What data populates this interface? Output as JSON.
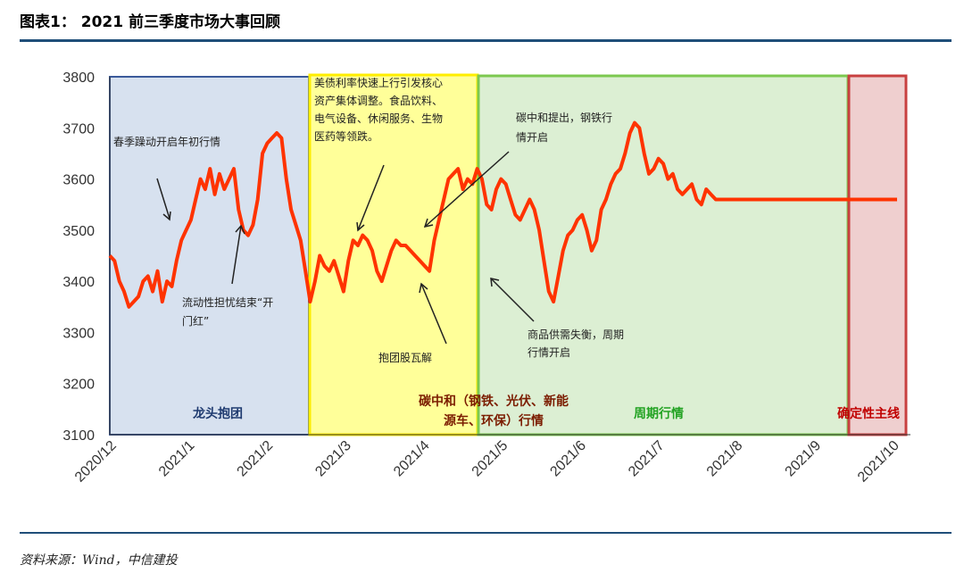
{
  "header": {
    "title": "图表1：  2021 前三季度市场大事回顾"
  },
  "footer": {
    "source": "资料来源：Wind，中信建投"
  },
  "chart_data": {
    "type": "line",
    "ylim": [
      3100,
      3800
    ],
    "yticks": [
      "3800",
      "3700",
      "3600",
      "3500",
      "3400",
      "3300",
      "3200",
      "3100"
    ],
    "xticks": [
      "2020/12",
      "2021/1",
      "2021/2",
      "2021/3",
      "2021/4",
      "2021/5",
      "2021/6",
      "2021/7",
      "2021/8",
      "2021/9",
      "2021/10"
    ],
    "line_color": "#ff3300",
    "x": [
      0,
      2,
      4,
      6,
      8,
      10,
      12,
      14,
      16,
      18,
      20,
      22,
      24,
      26,
      28,
      30,
      32,
      34,
      36,
      38,
      40,
      42,
      44,
      46,
      48,
      50,
      52,
      54,
      56,
      58,
      60,
      62,
      64,
      66,
      68,
      70,
      72,
      74,
      76,
      78,
      80,
      82,
      84,
      86,
      88,
      90,
      92,
      94,
      96,
      98,
      100,
      102,
      104,
      106,
      108,
      110,
      112,
      114,
      116,
      118,
      120,
      122,
      124,
      126,
      128,
      130,
      132,
      134,
      136,
      138,
      140,
      142,
      144,
      146,
      148,
      150,
      152,
      154,
      156,
      158,
      160,
      162,
      164,
      166,
      168,
      170,
      172,
      174,
      176,
      178,
      180,
      182,
      184,
      186,
      188,
      190,
      192,
      194,
      196,
      198,
      200,
      202,
      204,
      206,
      208,
      210,
      212,
      214,
      216,
      218,
      220,
      222,
      224,
      226,
      228,
      230,
      232,
      234,
      236,
      238,
      240,
      242,
      244,
      246,
      248,
      250,
      252,
      254,
      256,
      258,
      260,
      262,
      264,
      266,
      268,
      270,
      272,
      274,
      276,
      278,
      280,
      282,
      284,
      286,
      288,
      290,
      292,
      294,
      296,
      298,
      300,
      302,
      304,
      306,
      308,
      310,
      312,
      314,
      316,
      318,
      320,
      322,
      324,
      326,
      328,
      330
    ],
    "values": [
      3450,
      3440,
      3400,
      3380,
      3350,
      3360,
      3370,
      3400,
      3410,
      3380,
      3420,
      3360,
      3400,
      3390,
      3440,
      3480,
      3500,
      3520,
      3560,
      3600,
      3580,
      3620,
      3570,
      3610,
      3580,
      3600,
      3620,
      3540,
      3500,
      3490,
      3510,
      3560,
      3650,
      3670,
      3680,
      3690,
      3680,
      3600,
      3540,
      3510,
      3480,
      3420,
      3360,
      3400,
      3450,
      3430,
      3420,
      3440,
      3410,
      3380,
      3440,
      3480,
      3470,
      3490,
      3480,
      3460,
      3420,
      3400,
      3430,
      3460,
      3480,
      3470,
      3470,
      3460,
      3450,
      3440,
      3430,
      3420,
      3480,
      3520,
      3560,
      3600,
      3610,
      3620,
      3580,
      3600,
      3590,
      3620,
      3600,
      3550,
      3540,
      3580,
      3600,
      3590,
      3560,
      3530,
      3520,
      3540,
      3560,
      3540,
      3500,
      3440,
      3380,
      3360,
      3410,
      3460,
      3490,
      3500,
      3520,
      3530,
      3500,
      3460,
      3480,
      3540,
      3560,
      3590,
      3610,
      3620,
      3650,
      3690,
      3710,
      3700,
      3650,
      3610,
      3620,
      3640,
      3630,
      3600,
      3610,
      3580,
      3570,
      3580,
      3590,
      3560,
      3550,
      3580,
      3570,
      3560,
      3560,
      3560,
      3560,
      3560,
      3560,
      3560,
      3560,
      3560,
      3560,
      3560,
      3560,
      3560,
      3560,
      3560,
      3560,
      3560,
      3560,
      3560,
      3560,
      3560,
      3560,
      3560,
      3560,
      3560,
      3560,
      3560,
      3560,
      3560,
      3560,
      3560,
      3560,
      3560,
      3560,
      3560,
      3560,
      3560,
      3560,
      3560
    ],
    "zones": [
      {
        "label": "龙头抱团",
        "color": "#d7e1ef",
        "border": "#3b5a9a",
        "label_color": "#1f3b70"
      },
      {
        "label": "碳中和（钢铁、光伏、新能源车、环保）行情",
        "color": "#ffff99",
        "border": "#ffee00",
        "label_color": "#7b1c00"
      },
      {
        "label": "周期行情",
        "color": "#dcefd3",
        "border": "#7cc84f",
        "label_color": "#23a323"
      },
      {
        "label": "确定性主线",
        "color": "#efcfcf",
        "border": "#c84040",
        "label_color": "#c00000"
      }
    ],
    "annotations": [
      {
        "text": "春季躁动开启年初行情"
      },
      {
        "text": "流动性担忧结束“开门红”"
      },
      {
        "text": "美债利率快速上行引发核心资产集体调整。食品饮料、电气设备、休闲服务、生物医药等领跌。"
      },
      {
        "text": "抱团股瓦解"
      },
      {
        "text": "碳中和提出，钢铁行情开启"
      },
      {
        "text": "商品供需失衡，周期行情开启"
      }
    ]
  }
}
